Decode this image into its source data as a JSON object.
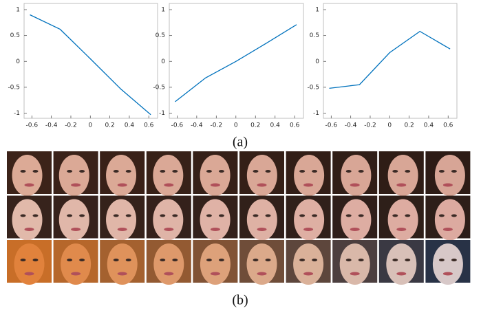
{
  "chart_data": [
    {
      "type": "line",
      "x": [
        -0.62,
        -0.31,
        0,
        0.31,
        0.62
      ],
      "values": [
        0.9,
        0.62,
        0.05,
        -0.53,
        -1.03
      ],
      "color": "#0072bd",
      "xlim": [
        -0.68,
        0.69
      ],
      "ylim": [
        -1.1,
        1.12
      ],
      "xticks": [
        -0.6,
        -0.4,
        -0.2,
        0,
        0.2,
        0.4,
        0.6
      ],
      "yticks": [
        -1,
        -0.5,
        0,
        0.5,
        1
      ]
    },
    {
      "type": "line",
      "x": [
        -0.62,
        -0.31,
        0,
        0.31,
        0.62
      ],
      "values": [
        -0.78,
        -0.32,
        0,
        0.35,
        0.71
      ],
      "color": "#0072bd",
      "xlim": [
        -0.68,
        0.69
      ],
      "ylim": [
        -1.1,
        1.12
      ],
      "xticks": [
        -0.6,
        -0.4,
        -0.2,
        0,
        0.2,
        0.4,
        0.6
      ],
      "yticks": [
        -1,
        -0.5,
        0,
        0.5,
        1
      ]
    },
    {
      "type": "line",
      "x": [
        -0.62,
        -0.31,
        0,
        0.31,
        0.62
      ],
      "values": [
        -0.52,
        -0.45,
        0.17,
        0.58,
        0.24
      ],
      "color": "#0072bd",
      "xlim": [
        -0.68,
        0.69
      ],
      "ylim": [
        -1.1,
        1.12
      ],
      "xticks": [
        -0.6,
        -0.4,
        -0.2,
        0,
        0.2,
        0.4,
        0.6
      ],
      "yticks": [
        -1,
        -0.5,
        0,
        0.5,
        1
      ]
    }
  ],
  "captions": [
    "(a)",
    "(b)"
  ]
}
